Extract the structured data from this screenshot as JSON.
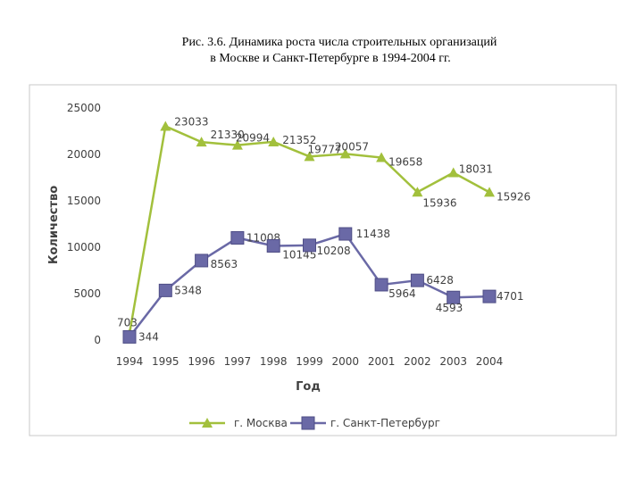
{
  "chart_data": {
    "type": "line",
    "title": [
      "Рис. 3.6. Динамика роста числа строительных организаций",
      "в Москве и Санкт-Петербурге в 1994-2004 гг."
    ],
    "x_label": "Год",
    "y_label": "Количество",
    "categories": [
      "1994",
      "1995",
      "1996",
      "1997",
      "1998",
      "1999",
      "2000",
      "2001",
      "2002",
      "2003",
      "2004"
    ],
    "series": [
      {
        "name": "г. Москва",
        "color": "#a2c03c",
        "marker": "triangle",
        "values": [
          703,
          23033,
          21330,
          20994,
          21352,
          19777,
          20057,
          19658,
          15936,
          18031,
          15926
        ]
      },
      {
        "name": "г. Санкт-Петербург",
        "color": "#6a69a6",
        "marker": "square",
        "values": [
          344,
          5348,
          8563,
          11008,
          10145,
          10208,
          11438,
          5964,
          6428,
          4593,
          4701
        ]
      }
    ],
    "ylim": [
      0,
      25000
    ],
    "yticks": [
      0,
      5000,
      10000,
      15000,
      20000,
      25000
    ],
    "grid": false,
    "legend": "bottom"
  }
}
